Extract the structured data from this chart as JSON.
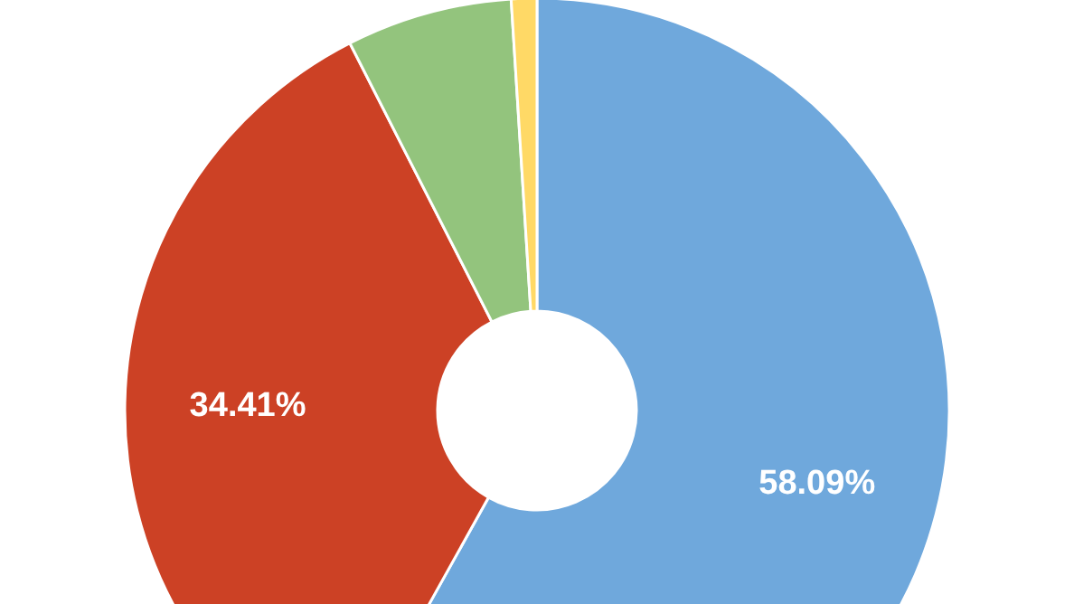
{
  "chart_data": {
    "type": "donut",
    "categories": [
      null,
      null,
      null,
      null
    ],
    "values": [
      58.09,
      34.41,
      6.5,
      1.0
    ],
    "colors": [
      "#6fa8dc",
      "#cc4125",
      "#93c47d",
      "#ffd966"
    ],
    "value_labels": [
      "58.09%",
      "34.41%",
      null,
      null
    ],
    "legend": false
  }
}
